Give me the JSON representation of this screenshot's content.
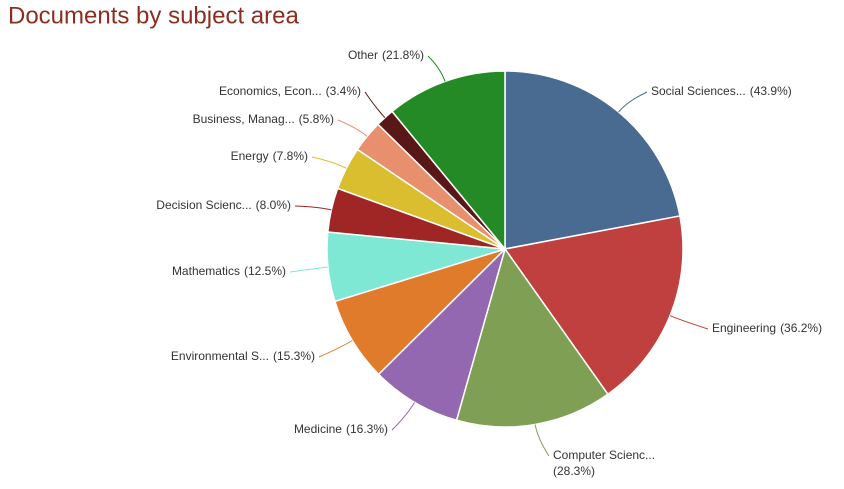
{
  "chart_data": {
    "type": "pie",
    "title": "Documents by subject area",
    "categories": [
      "Social Sciences...",
      "Engineering",
      "Computer Scienc...",
      "Medicine",
      "Environmental S...",
      "Mathematics",
      "Decision Scienc...",
      "Energy",
      "Business, Manag...",
      "Economics, Econ...",
      "Other"
    ],
    "values": [
      43.9,
      36.2,
      28.3,
      16.3,
      15.3,
      12.5,
      8.0,
      7.8,
      5.8,
      3.4,
      21.8
    ],
    "value_labels": [
      "(43.9%)",
      "(36.2%)",
      "(28.3%)",
      "(16.3%)",
      "(15.3%)",
      "(12.5%)",
      "(8.0%)",
      "(7.8%)",
      "(5.8%)",
      "(3.4%)",
      "(21.8%)"
    ],
    "colors": [
      "#4a6b91",
      "#c03f3f",
      "#7f9f55",
      "#9468b1",
      "#e07b2c",
      "#7fe8d5",
      "#a02626",
      "#dbbe2f",
      "#e8906e",
      "#5a1717",
      "#238a25"
    ]
  }
}
